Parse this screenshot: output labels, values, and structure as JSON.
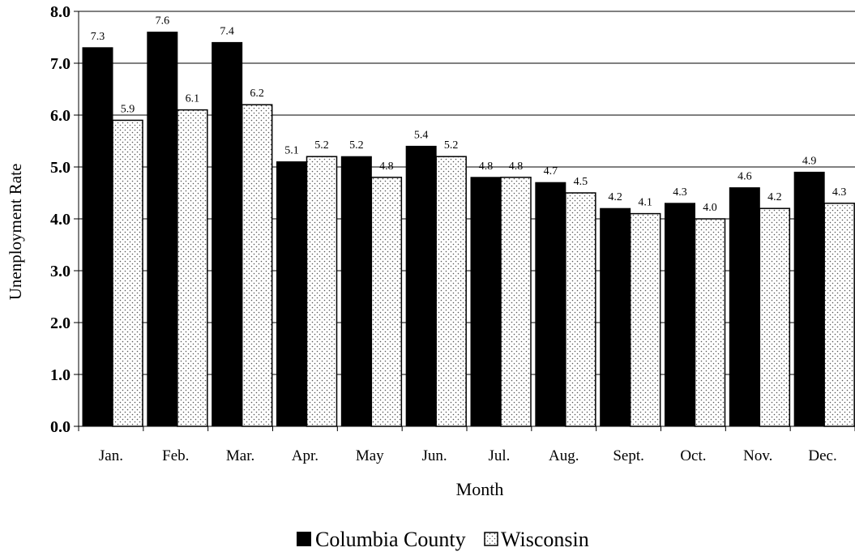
{
  "chart_data": {
    "type": "bar",
    "title": "",
    "xlabel": "Month",
    "ylabel": "Unenployment Rate",
    "ylim": [
      0,
      8
    ],
    "yticks": [
      "0.0",
      "1.0",
      "2.0",
      "3.0",
      "4.0",
      "5.0",
      "6.0",
      "7.0",
      "8.0"
    ],
    "categories": [
      "Jan.",
      "Feb.",
      "Mar.",
      "Apr.",
      "May",
      "Jun.",
      "Jul.",
      "Aug.",
      "Sept.",
      "Oct.",
      "Nov.",
      "Dec."
    ],
    "series": [
      {
        "name": "Columbia County",
        "color": "#000000",
        "pattern": "solid",
        "values": [
          7.3,
          7.6,
          7.4,
          5.1,
          5.2,
          5.4,
          4.8,
          4.7,
          4.2,
          4.3,
          4.6,
          4.9
        ],
        "labels": [
          "7.3",
          "7.6",
          "7.4",
          "5.1",
          "5.2",
          "5.4",
          "4.8",
          "4.7",
          "4.2",
          "4.3",
          "4.6",
          "4.9"
        ]
      },
      {
        "name": "Wisconsin",
        "color": "#ffffff",
        "pattern": "dotted",
        "values": [
          5.9,
          6.1,
          6.2,
          5.2,
          4.8,
          5.2,
          4.8,
          4.5,
          4.1,
          4.0,
          4.2,
          4.3
        ],
        "labels": [
          "5.9",
          "6.1",
          "6.2",
          "5.2",
          "4.8",
          "5.2",
          "4.8",
          "4.5",
          "4.1",
          "4.0",
          "4.2",
          "4.3"
        ]
      }
    ],
    "gridlines": "horizontal",
    "legend_position": "bottom"
  }
}
